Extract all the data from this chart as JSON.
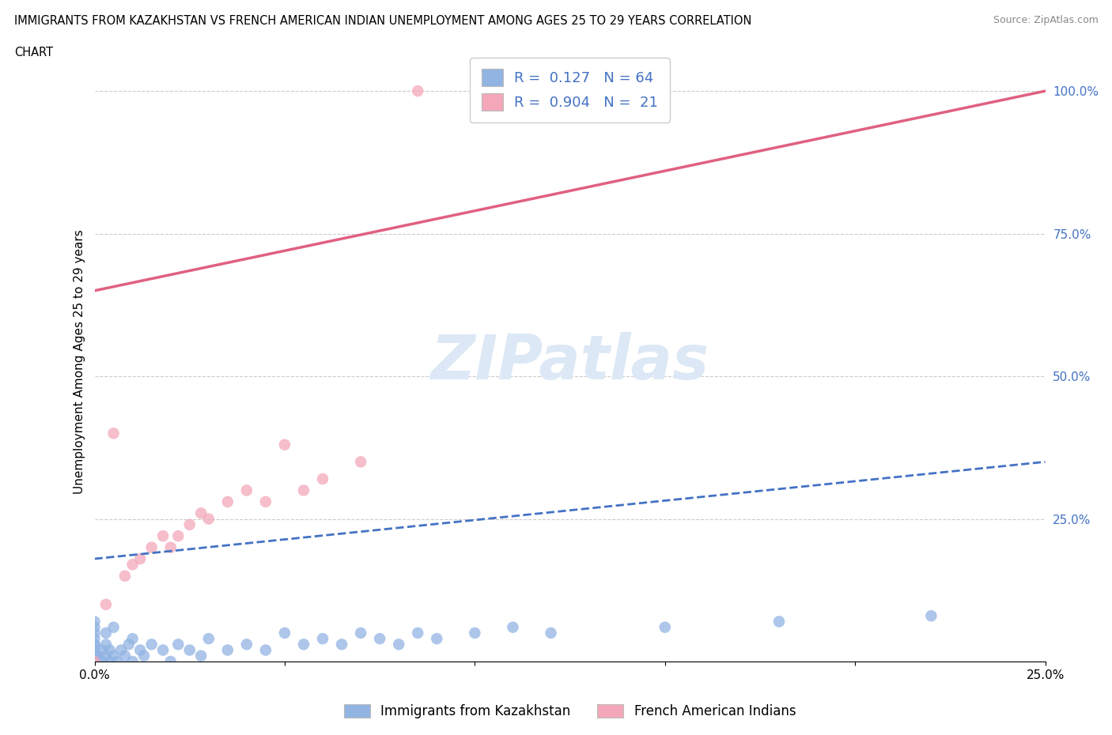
{
  "title_line1": "IMMIGRANTS FROM KAZAKHSTAN VS FRENCH AMERICAN INDIAN UNEMPLOYMENT AMONG AGES 25 TO 29 YEARS CORRELATION",
  "title_line2": "CHART",
  "source_text": "Source: ZipAtlas.com",
  "ylabel": "Unemployment Among Ages 25 to 29 years",
  "R_kaz": 0.127,
  "N_kaz": 64,
  "R_fai": 0.904,
  "N_fai": 21,
  "color_kaz": "#92b4e3",
  "color_fai": "#f4a7b9",
  "line_color_kaz": "#4472c4",
  "line_color_fai": "#e06080",
  "watermark_color": "#dce8f5",
  "background_color": "#ffffff",
  "legend_label_kaz": "Immigrants from Kazakhstan",
  "legend_label_fai": "French American Indians",
  "xlim": [
    0.0,
    0.25
  ],
  "ylim": [
    0.0,
    1.05
  ],
  "grid_color": "#cccccc",
  "kaz_x": [
    0.0,
    0.0,
    0.0,
    0.0,
    0.0,
    0.0,
    0.0,
    0.0,
    0.0,
    0.0,
    0.0,
    0.0,
    0.0,
    0.0,
    0.0,
    0.0,
    0.0,
    0.0,
    0.0,
    0.0,
    0.001,
    0.001,
    0.002,
    0.002,
    0.003,
    0.003,
    0.003,
    0.004,
    0.004,
    0.005,
    0.005,
    0.006,
    0.007,
    0.008,
    0.009,
    0.01,
    0.01,
    0.012,
    0.013,
    0.015,
    0.018,
    0.02,
    0.022,
    0.025,
    0.028,
    0.03,
    0.035,
    0.04,
    0.045,
    0.05,
    0.055,
    0.06,
    0.065,
    0.07,
    0.075,
    0.08,
    0.085,
    0.09,
    0.1,
    0.11,
    0.12,
    0.15,
    0.18,
    0.22
  ],
  "kaz_y": [
    0.0,
    0.0,
    0.0,
    0.0,
    0.0,
    0.0,
    0.0,
    0.0,
    0.0,
    0.0,
    0.01,
    0.01,
    0.02,
    0.02,
    0.03,
    0.03,
    0.04,
    0.05,
    0.06,
    0.07,
    0.0,
    0.01,
    0.0,
    0.02,
    0.01,
    0.03,
    0.05,
    0.0,
    0.02,
    0.01,
    0.06,
    0.0,
    0.02,
    0.01,
    0.03,
    0.0,
    0.04,
    0.02,
    0.01,
    0.03,
    0.02,
    0.0,
    0.03,
    0.02,
    0.01,
    0.04,
    0.02,
    0.03,
    0.02,
    0.05,
    0.03,
    0.04,
    0.03,
    0.05,
    0.04,
    0.03,
    0.05,
    0.04,
    0.05,
    0.06,
    0.05,
    0.06,
    0.07,
    0.08
  ],
  "fai_x": [
    0.0,
    0.003,
    0.005,
    0.008,
    0.01,
    0.012,
    0.015,
    0.018,
    0.02,
    0.022,
    0.025,
    0.028,
    0.03,
    0.035,
    0.04,
    0.045,
    0.05,
    0.055,
    0.06,
    0.07,
    0.085
  ],
  "fai_y": [
    0.0,
    0.1,
    0.4,
    0.15,
    0.17,
    0.18,
    0.2,
    0.22,
    0.2,
    0.22,
    0.24,
    0.26,
    0.25,
    0.28,
    0.3,
    0.28,
    0.38,
    0.3,
    0.32,
    0.35,
    1.0
  ],
  "kaz_line_x": [
    0.0,
    0.25
  ],
  "kaz_line_y": [
    0.18,
    0.35
  ],
  "fai_line_x": [
    0.0,
    0.25
  ],
  "fai_line_y": [
    0.65,
    1.0
  ]
}
